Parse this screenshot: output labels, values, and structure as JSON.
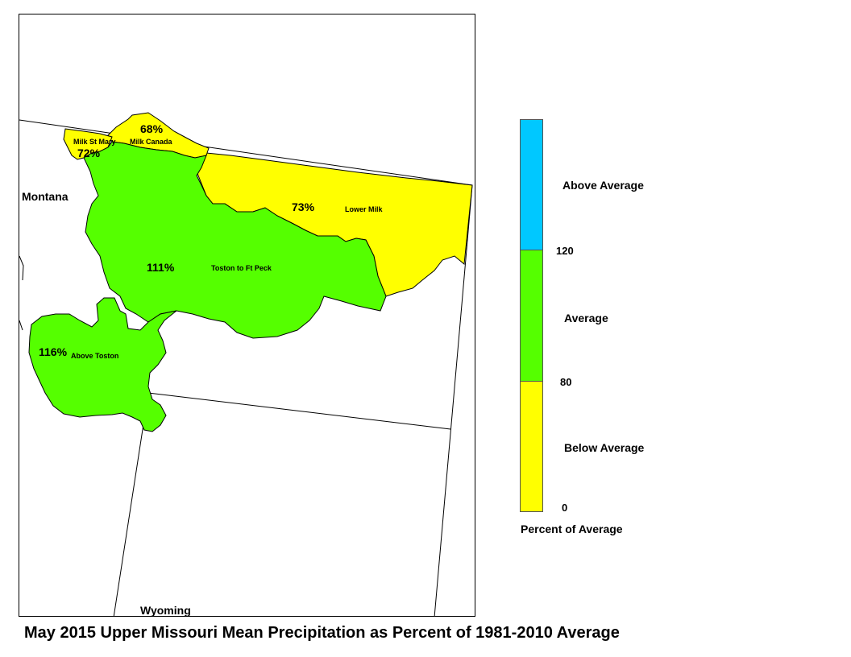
{
  "title": "May 2015 Upper Missouri Mean Precipitation as Percent of 1981-2010 Average",
  "states": {
    "montana": "Montana",
    "wyoming": "Wyoming"
  },
  "colors": {
    "below_average": "#ffff00",
    "average": "#55ff00",
    "above_average": "#00c8ff",
    "boundary": "#000000"
  },
  "basins": [
    {
      "name": "Milk St Mary",
      "percent": "72%",
      "category": "below_average"
    },
    {
      "name": "Milk Canada",
      "percent": "68%",
      "category": "below_average"
    },
    {
      "name": "Lower Milk",
      "percent": "73%",
      "category": "below_average"
    },
    {
      "name": "Toston to Ft Peck",
      "percent": "111%",
      "category": "average"
    },
    {
      "name": "Above Toston",
      "percent": "116%",
      "category": "average"
    }
  ],
  "legend": {
    "title": "Percent of Average",
    "classes": [
      {
        "label": "Above Average",
        "color": "#00c8ff"
      },
      {
        "label": "Average",
        "color": "#55ff00"
      },
      {
        "label": "Below Average",
        "color": "#ffff00"
      }
    ],
    "ticks": [
      "120",
      "80",
      "0"
    ]
  }
}
